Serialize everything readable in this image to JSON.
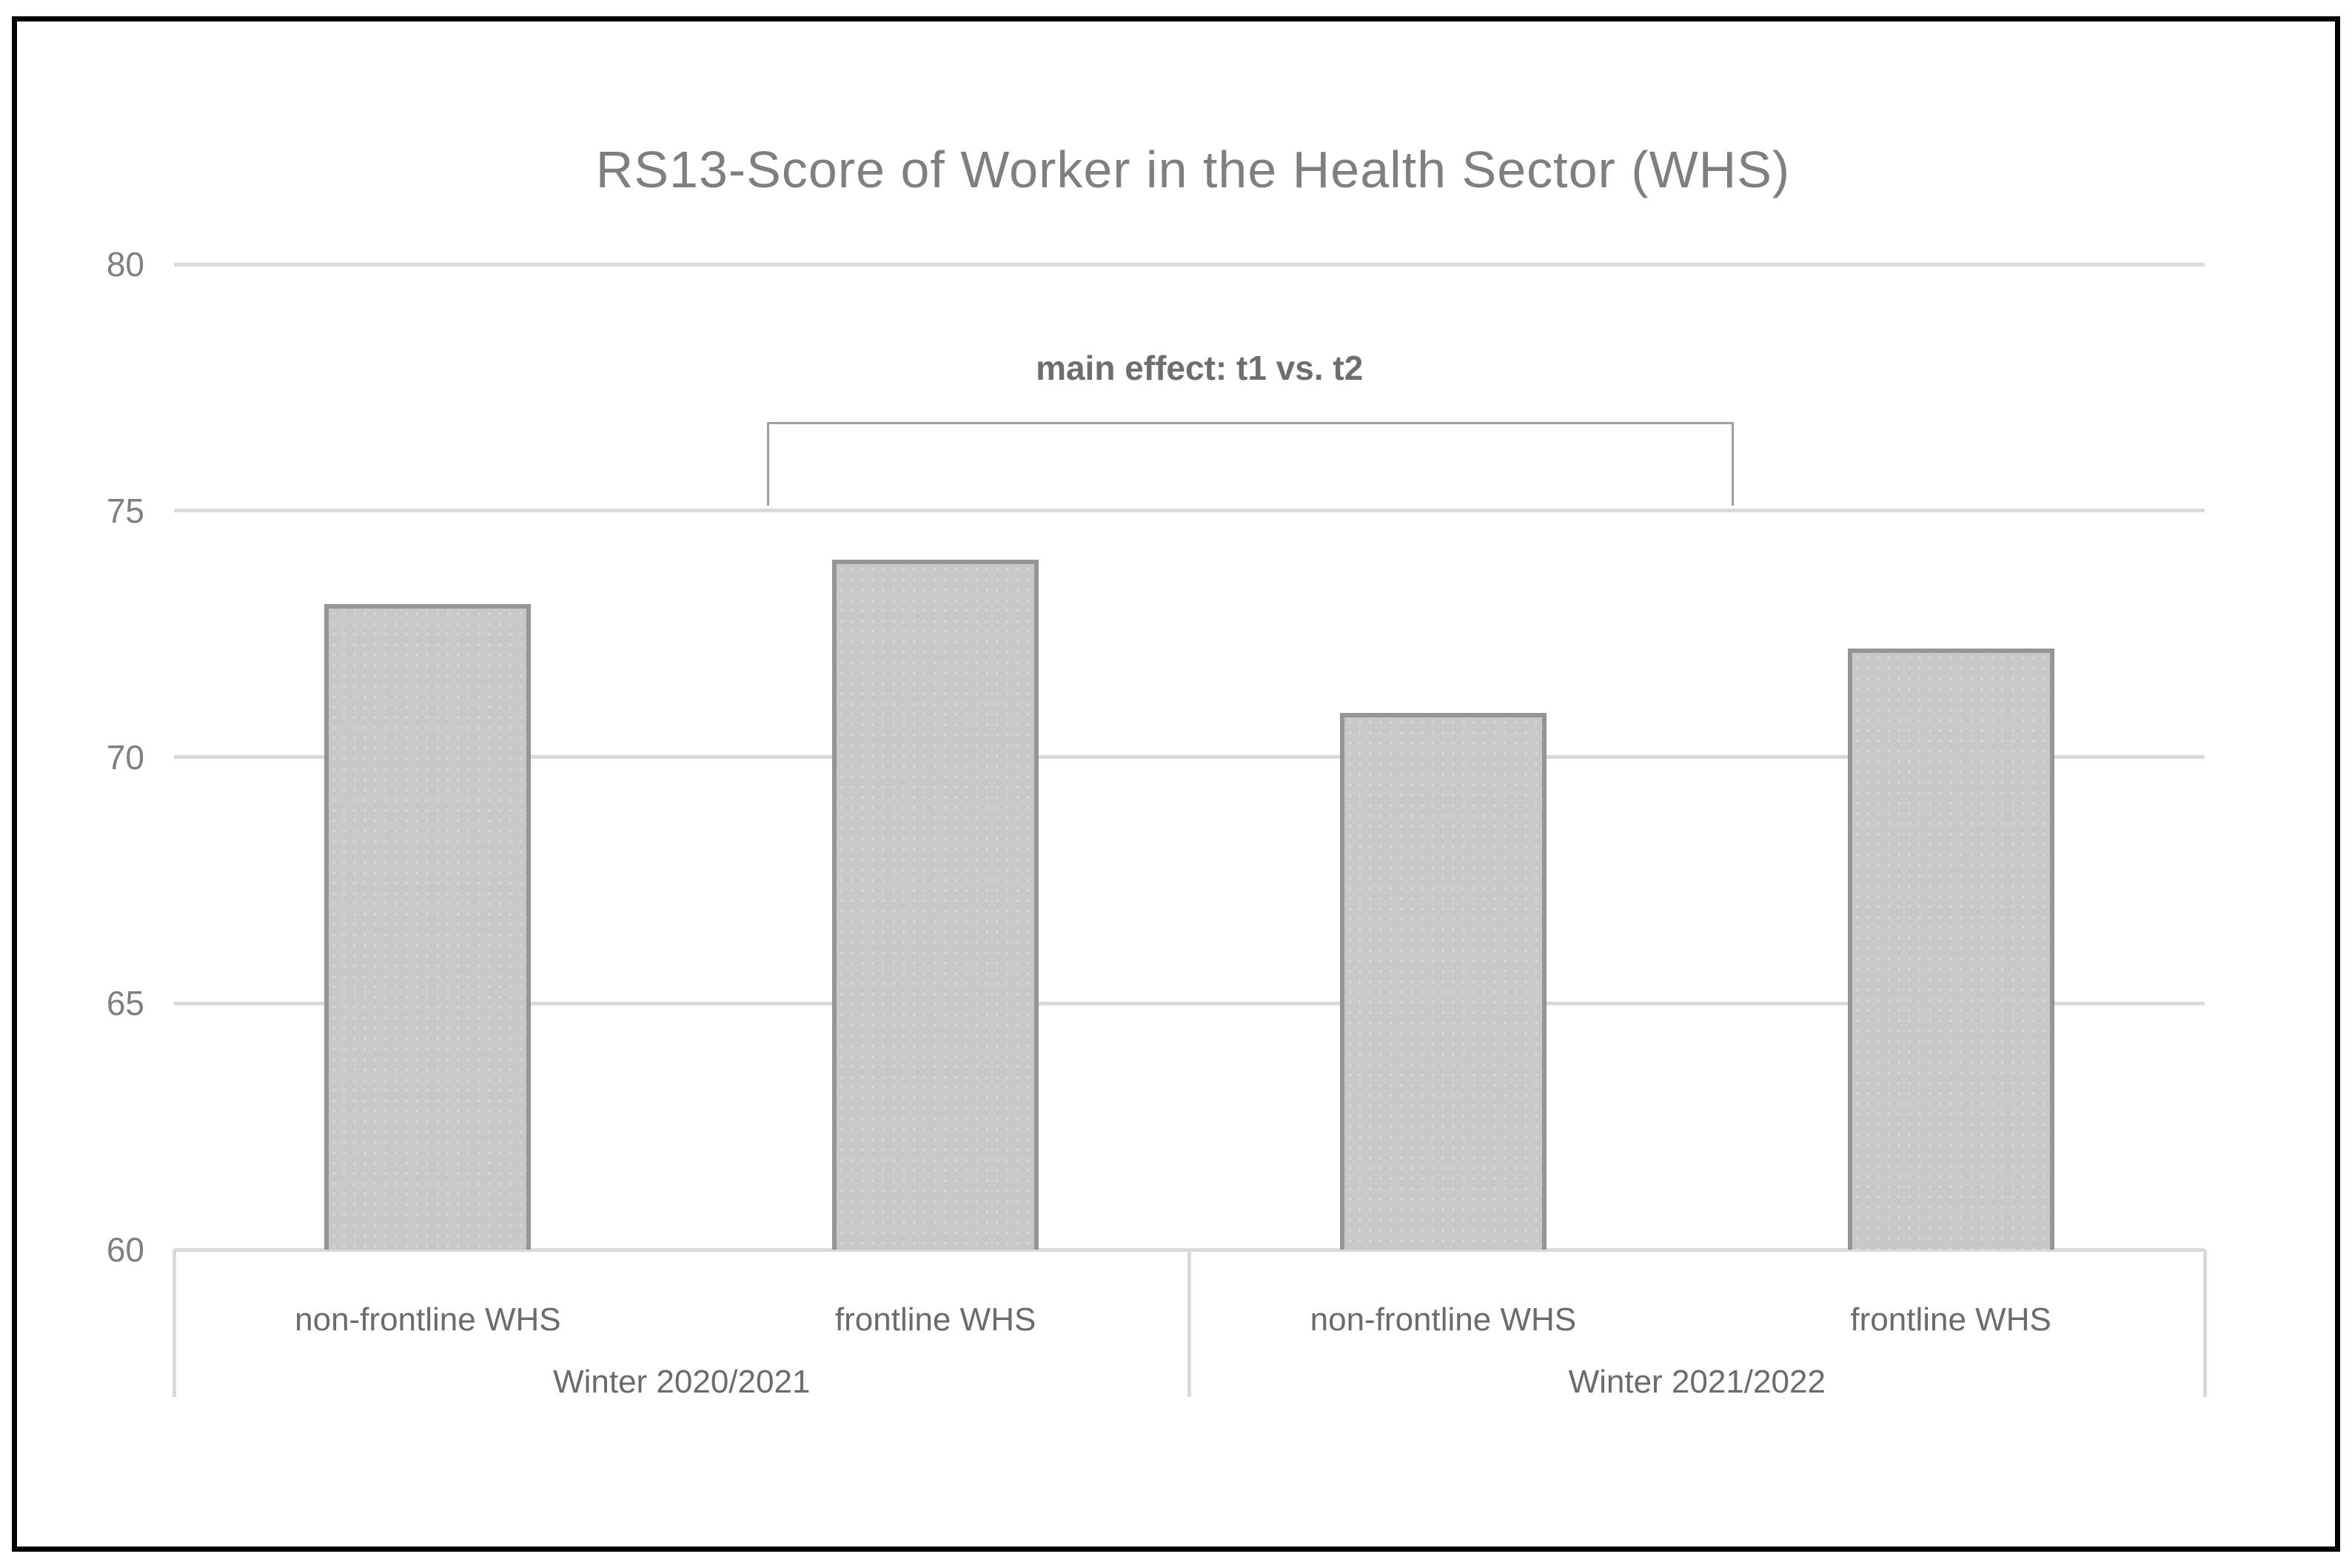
{
  "chart_data": {
    "type": "bar",
    "title": "RS13-Score of Worker in the Health Sector (WHS)",
    "categories": [
      "non-frontline WHS",
      "frontline WHS",
      "non-frontline WHS",
      "frontline WHS"
    ],
    "values": [
      73.1,
      74.0,
      70.9,
      72.2
    ],
    "groups": [
      {
        "label": "Winter 2020/2021",
        "members": [
          "non-frontline WHS",
          "frontline WHS"
        ],
        "values": [
          73.1,
          74.0
        ]
      },
      {
        "label": "Winter 2021/2022",
        "members": [
          "non-frontline WHS",
          "frontline WHS"
        ],
        "values": [
          70.9,
          72.2
        ]
      }
    ],
    "xlabel": "",
    "ylabel": "",
    "ylim": [
      60,
      80
    ],
    "yticks": [
      80,
      75,
      70,
      65,
      60
    ],
    "grid": true,
    "legend": "none",
    "annotation": {
      "text": "main effect: t1 vs. t2",
      "x1_frac": 0.292,
      "x2_frac": 0.768,
      "text_x_frac": 0.505,
      "y_top": 76.8,
      "y_base": 75.1
    },
    "colors": {
      "outer_border": "#000000",
      "title": "#7f7f7f",
      "tick_label": "#7f7f7f",
      "category_label": "#6b6b6b",
      "gridline": "#dadada",
      "bar_fill": "#c7c8c8",
      "bar_dot": "#d5d6d6",
      "bar_border": "#959595",
      "bracket": "#a0a0a0",
      "annotation_text": "#6e6e6e"
    }
  }
}
